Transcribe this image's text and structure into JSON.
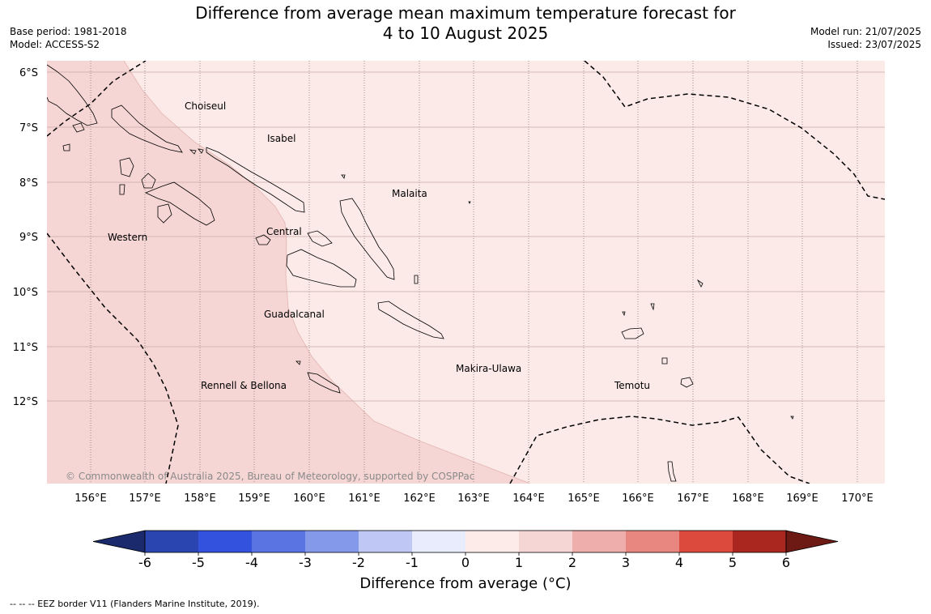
{
  "title": {
    "line1": "Difference from average mean maximum temperature forecast for",
    "line2": "4 to 10 August 2025"
  },
  "meta": {
    "base_period": "Base period: 1981-2018",
    "model": "Model: ACCESS-S2",
    "model_run": "Model run: 21/07/2025",
    "issued": "Issued: 23/07/2025"
  },
  "map": {
    "lat_labels": [
      "6°S",
      "7°S",
      "8°S",
      "9°S",
      "10°S",
      "11°S",
      "12°S"
    ],
    "lon_labels": [
      "156°E",
      "157°E",
      "158°E",
      "159°E",
      "160°E",
      "161°E",
      "162°E",
      "163°E",
      "164°E",
      "165°E",
      "166°E",
      "167°E",
      "168°E",
      "169°E",
      "170°E"
    ],
    "region_labels": {
      "choiseul": "Choiseul",
      "isabel": "Isabel",
      "malaita": "Malaita",
      "western": "Western",
      "central": "Central",
      "guadalcanal": "Guadalcanal",
      "rennell": "Rennell & Bellona",
      "makira": "Makira-Ulawa",
      "temotu": "Temotu"
    },
    "copyright": "© Commonwealth of Australia 2025, Bureau of Meteorology, supported by COSPPac",
    "category_colors": {
      "1_to_2": "#f5d6d4",
      "0_to_1": "#fbeae8"
    }
  },
  "colorbar": {
    "ticks": [
      "-6",
      "-5",
      "-4",
      "-3",
      "-2",
      "-1",
      "0",
      "1",
      "2",
      "3",
      "4",
      "5",
      "6"
    ],
    "under_color": "#1a2a6c",
    "over_color": "#6e1a14",
    "colors": [
      "#2a45b0",
      "#3352dd",
      "#5a74e2",
      "#8599eb",
      "#bfc8f4",
      "#e9ecfc",
      "#fcebe9",
      "#f6d6d4",
      "#eeaeab",
      "#e7877f",
      "#dc4a3e",
      "#a9271e"
    ],
    "label": "Difference from average (°C)"
  },
  "footer": "--  --  -- EEZ border V11 (Flanders Marine Institute, 2019)."
}
